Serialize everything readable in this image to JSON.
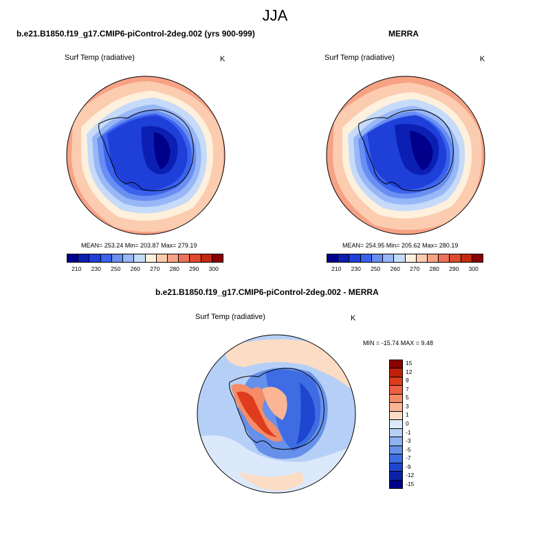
{
  "figure": {
    "suptitle": "JJA",
    "panel1": {
      "title": "b.e21.B1850.f19_g17.CMIP6-piControl-2deg.002 (yrs 900-999)",
      "variable": "Surf Temp (radiative)",
      "units": "K",
      "stats": "MEAN= 253.24  Min= 203.87  Max= 279.19"
    },
    "panel2": {
      "title": "MERRA",
      "variable": "Surf Temp (radiative)",
      "units": "K",
      "stats": "MEAN= 254.95  Min= 205.62  Max= 280.19"
    },
    "panel3": {
      "title": "b.e21.B1850.f19_g17.CMIP6-piControl-2deg.002 - MERRA",
      "variable": "Surf Temp (radiative)",
      "units": "K",
      "stats": "MIN = -15.74 MAX =   9.48"
    },
    "temp_colorbar": {
      "colors": [
        "#00008b",
        "#0b1fb3",
        "#1f3fd9",
        "#3a62ec",
        "#6a8ff2",
        "#98b7f6",
        "#c6daf9",
        "#fdf0dc",
        "#fcccb0",
        "#f7a285",
        "#ef735a",
        "#e04a2c",
        "#c42a12",
        "#8b0000"
      ],
      "ticks": [
        "210",
        "230",
        "250",
        "260",
        "270",
        "280",
        "290",
        "300"
      ]
    },
    "diff_colorbar": {
      "colors_top_to_bottom": [
        "#8b0000",
        "#c0200a",
        "#de3c1c",
        "#ee6040",
        "#f58c68",
        "#fab694",
        "#fcdcc4",
        "#dbe9fb",
        "#b6cff6",
        "#8eb1f0",
        "#6690ea",
        "#3e6ce2",
        "#1f46cf",
        "#0a22a8",
        "#00008b"
      ],
      "ticks": [
        "15",
        "12",
        "9",
        "7",
        "5",
        "3",
        "1",
        "0",
        "-1",
        "-3",
        "-5",
        "-7",
        "-9",
        "-12",
        "-15"
      ]
    }
  }
}
